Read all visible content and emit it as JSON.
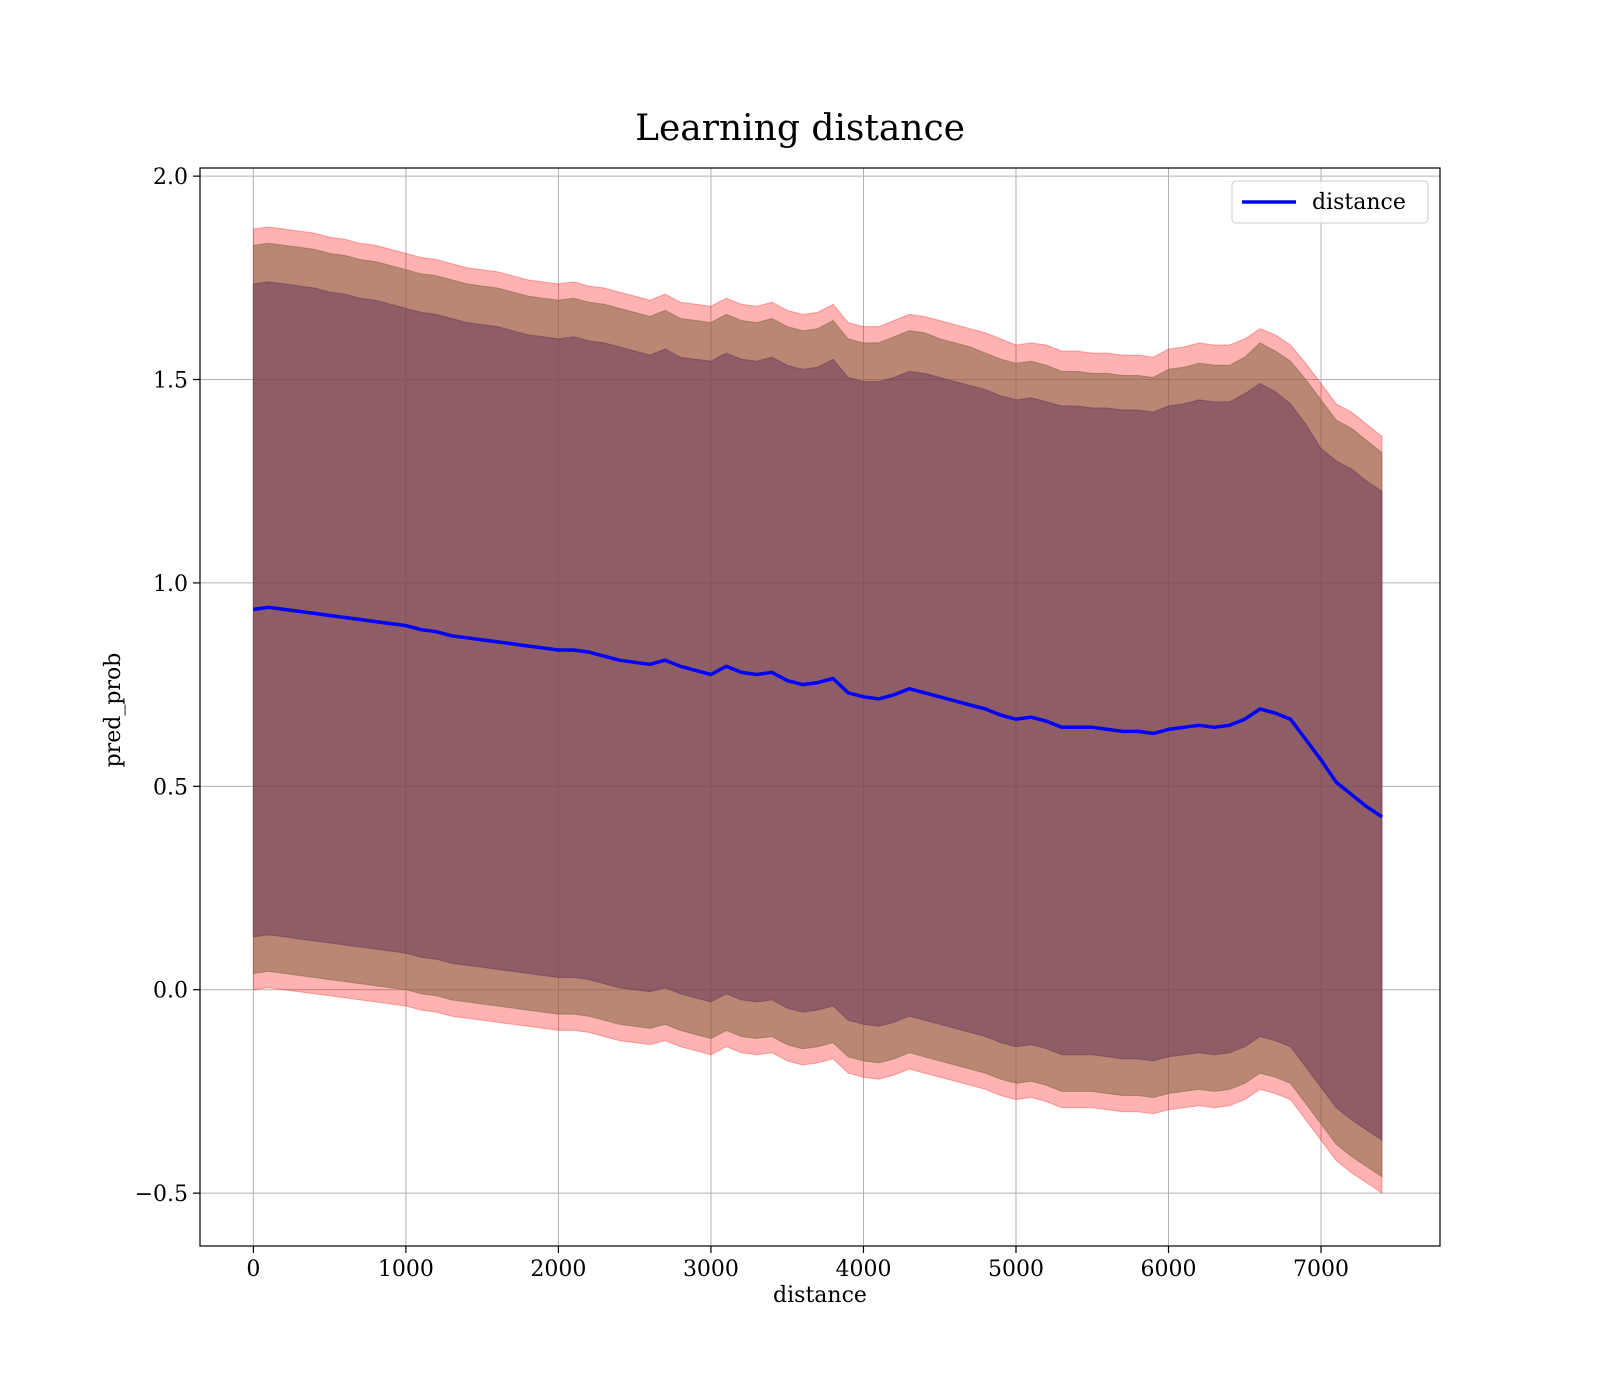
{
  "chart_data": {
    "type": "line",
    "title": "Learning distance",
    "xlabel": "distance",
    "ylabel": "pred_prob",
    "xlim": [
      -350,
      7780
    ],
    "ylim": [
      -0.63,
      2.02
    ],
    "xticks": [
      0,
      1000,
      2000,
      3000,
      4000,
      5000,
      6000,
      7000
    ],
    "xtick_labels": [
      "0",
      "1000",
      "2000",
      "3000",
      "4000",
      "5000",
      "6000",
      "7000"
    ],
    "yticks": [
      -0.5,
      0.0,
      0.5,
      1.0,
      1.5,
      2.0
    ],
    "ytick_labels": [
      "−0.5",
      "0.0",
      "0.5",
      "1.0",
      "1.5",
      "2.0"
    ],
    "grid": true,
    "legend": {
      "position": "upper right",
      "entries": [
        "distance"
      ]
    },
    "colors": {
      "line": "#0000ff",
      "outer_band": "#ff0000",
      "middle_band": "#8b6b4a",
      "inner_band": "#6b3b5b"
    },
    "series": [
      {
        "name": "distance",
        "x": [
          0,
          100,
          200,
          300,
          400,
          500,
          600,
          700,
          800,
          900,
          1000,
          1100,
          1200,
          1300,
          1400,
          1500,
          1600,
          1700,
          1800,
          1900,
          2000,
          2100,
          2200,
          2300,
          2400,
          2500,
          2600,
          2700,
          2800,
          2900,
          3000,
          3100,
          3200,
          3300,
          3400,
          3500,
          3600,
          3700,
          3800,
          3900,
          4000,
          4100,
          4200,
          4300,
          4400,
          4500,
          4600,
          4700,
          4800,
          4900,
          5000,
          5100,
          5200,
          5300,
          5400,
          5500,
          5600,
          5700,
          5800,
          5900,
          6000,
          6100,
          6200,
          6300,
          6400,
          6500,
          6600,
          6700,
          6800,
          6900,
          7000,
          7100,
          7200,
          7300,
          7400
        ],
        "y": [
          0.935,
          0.94,
          0.935,
          0.93,
          0.925,
          0.92,
          0.915,
          0.91,
          0.905,
          0.9,
          0.895,
          0.885,
          0.88,
          0.87,
          0.865,
          0.86,
          0.855,
          0.85,
          0.845,
          0.84,
          0.835,
          0.835,
          0.83,
          0.82,
          0.81,
          0.805,
          0.8,
          0.81,
          0.795,
          0.785,
          0.775,
          0.795,
          0.78,
          0.775,
          0.78,
          0.76,
          0.75,
          0.755,
          0.765,
          0.73,
          0.72,
          0.715,
          0.725,
          0.74,
          0.73,
          0.72,
          0.71,
          0.7,
          0.69,
          0.675,
          0.665,
          0.67,
          0.66,
          0.645,
          0.645,
          0.645,
          0.64,
          0.635,
          0.635,
          0.63,
          0.64,
          0.645,
          0.65,
          0.645,
          0.65,
          0.665,
          0.69,
          0.68,
          0.665,
          0.615,
          0.565,
          0.51,
          0.48,
          0.45,
          0.425
        ],
        "band_outer_upper": [
          1.87,
          1.875,
          1.87,
          1.865,
          1.86,
          1.85,
          1.845,
          1.835,
          1.83,
          1.82,
          1.81,
          1.8,
          1.795,
          1.785,
          1.775,
          1.77,
          1.765,
          1.755,
          1.745,
          1.74,
          1.735,
          1.74,
          1.73,
          1.725,
          1.715,
          1.705,
          1.695,
          1.71,
          1.69,
          1.685,
          1.68,
          1.7,
          1.685,
          1.68,
          1.69,
          1.67,
          1.66,
          1.665,
          1.685,
          1.64,
          1.63,
          1.63,
          1.645,
          1.66,
          1.655,
          1.645,
          1.635,
          1.625,
          1.615,
          1.6,
          1.585,
          1.59,
          1.585,
          1.57,
          1.57,
          1.565,
          1.565,
          1.56,
          1.56,
          1.555,
          1.575,
          1.58,
          1.59,
          1.585,
          1.585,
          1.6,
          1.625,
          1.61,
          1.585,
          1.54,
          1.49,
          1.44,
          1.42,
          1.39,
          1.36
        ],
        "band_middle_upper": [
          1.83,
          1.835,
          1.83,
          1.825,
          1.82,
          1.81,
          1.805,
          1.795,
          1.79,
          1.78,
          1.77,
          1.76,
          1.755,
          1.745,
          1.735,
          1.73,
          1.725,
          1.715,
          1.705,
          1.7,
          1.695,
          1.7,
          1.69,
          1.685,
          1.675,
          1.665,
          1.655,
          1.67,
          1.65,
          1.645,
          1.64,
          1.66,
          1.645,
          1.64,
          1.65,
          1.63,
          1.62,
          1.625,
          1.645,
          1.6,
          1.59,
          1.59,
          1.605,
          1.62,
          1.615,
          1.6,
          1.59,
          1.58,
          1.565,
          1.55,
          1.54,
          1.545,
          1.535,
          1.52,
          1.52,
          1.515,
          1.515,
          1.51,
          1.51,
          1.505,
          1.525,
          1.53,
          1.54,
          1.535,
          1.535,
          1.555,
          1.59,
          1.57,
          1.545,
          1.5,
          1.45,
          1.4,
          1.38,
          1.35,
          1.32
        ],
        "band_inner_upper": [
          1.735,
          1.74,
          1.735,
          1.73,
          1.725,
          1.715,
          1.71,
          1.7,
          1.695,
          1.685,
          1.675,
          1.665,
          1.66,
          1.65,
          1.64,
          1.635,
          1.63,
          1.62,
          1.61,
          1.605,
          1.6,
          1.605,
          1.595,
          1.59,
          1.58,
          1.57,
          1.56,
          1.575,
          1.555,
          1.55,
          1.545,
          1.565,
          1.55,
          1.545,
          1.555,
          1.535,
          1.525,
          1.53,
          1.55,
          1.505,
          1.495,
          1.495,
          1.505,
          1.52,
          1.515,
          1.505,
          1.495,
          1.485,
          1.475,
          1.46,
          1.45,
          1.455,
          1.445,
          1.435,
          1.435,
          1.43,
          1.43,
          1.425,
          1.425,
          1.42,
          1.435,
          1.44,
          1.45,
          1.445,
          1.445,
          1.465,
          1.49,
          1.47,
          1.44,
          1.39,
          1.33,
          1.3,
          1.28,
          1.25,
          1.225
        ],
        "band_inner_lower": [
          0.13,
          0.135,
          0.13,
          0.125,
          0.12,
          0.115,
          0.11,
          0.105,
          0.1,
          0.095,
          0.09,
          0.08,
          0.075,
          0.065,
          0.06,
          0.055,
          0.05,
          0.045,
          0.04,
          0.035,
          0.03,
          0.03,
          0.025,
          0.015,
          0.005,
          0.0,
          -0.005,
          0.005,
          -0.01,
          -0.02,
          -0.03,
          -0.01,
          -0.025,
          -0.03,
          -0.025,
          -0.045,
          -0.055,
          -0.05,
          -0.04,
          -0.075,
          -0.085,
          -0.09,
          -0.08,
          -0.065,
          -0.075,
          -0.085,
          -0.095,
          -0.105,
          -0.115,
          -0.13,
          -0.14,
          -0.135,
          -0.145,
          -0.16,
          -0.16,
          -0.16,
          -0.165,
          -0.17,
          -0.17,
          -0.175,
          -0.165,
          -0.16,
          -0.155,
          -0.16,
          -0.155,
          -0.14,
          -0.115,
          -0.125,
          -0.14,
          -0.19,
          -0.24,
          -0.29,
          -0.32,
          -0.345,
          -0.37
        ],
        "band_middle_lower": [
          0.04,
          0.045,
          0.04,
          0.035,
          0.03,
          0.025,
          0.02,
          0.015,
          0.01,
          0.005,
          0.0,
          -0.01,
          -0.015,
          -0.025,
          -0.03,
          -0.035,
          -0.04,
          -0.045,
          -0.05,
          -0.055,
          -0.06,
          -0.06,
          -0.065,
          -0.075,
          -0.085,
          -0.09,
          -0.095,
          -0.085,
          -0.1,
          -0.11,
          -0.12,
          -0.1,
          -0.115,
          -0.12,
          -0.115,
          -0.135,
          -0.145,
          -0.14,
          -0.13,
          -0.165,
          -0.175,
          -0.18,
          -0.17,
          -0.155,
          -0.165,
          -0.175,
          -0.185,
          -0.195,
          -0.205,
          -0.22,
          -0.23,
          -0.225,
          -0.235,
          -0.25,
          -0.25,
          -0.25,
          -0.255,
          -0.26,
          -0.26,
          -0.265,
          -0.255,
          -0.25,
          -0.245,
          -0.25,
          -0.245,
          -0.23,
          -0.205,
          -0.215,
          -0.23,
          -0.28,
          -0.33,
          -0.38,
          -0.41,
          -0.435,
          -0.46
        ],
        "band_outer_lower": [
          0.0,
          0.005,
          0.0,
          -0.005,
          -0.01,
          -0.015,
          -0.02,
          -0.025,
          -0.03,
          -0.035,
          -0.04,
          -0.05,
          -0.055,
          -0.065,
          -0.07,
          -0.075,
          -0.08,
          -0.085,
          -0.09,
          -0.095,
          -0.1,
          -0.1,
          -0.105,
          -0.115,
          -0.125,
          -0.13,
          -0.135,
          -0.125,
          -0.14,
          -0.15,
          -0.16,
          -0.14,
          -0.155,
          -0.16,
          -0.155,
          -0.175,
          -0.185,
          -0.18,
          -0.17,
          -0.205,
          -0.215,
          -0.22,
          -0.21,
          -0.195,
          -0.205,
          -0.215,
          -0.225,
          -0.235,
          -0.245,
          -0.26,
          -0.27,
          -0.265,
          -0.275,
          -0.29,
          -0.29,
          -0.29,
          -0.295,
          -0.3,
          -0.3,
          -0.305,
          -0.295,
          -0.29,
          -0.285,
          -0.29,
          -0.285,
          -0.27,
          -0.245,
          -0.255,
          -0.27,
          -0.32,
          -0.37,
          -0.42,
          -0.45,
          -0.475,
          -0.5
        ]
      }
    ]
  }
}
